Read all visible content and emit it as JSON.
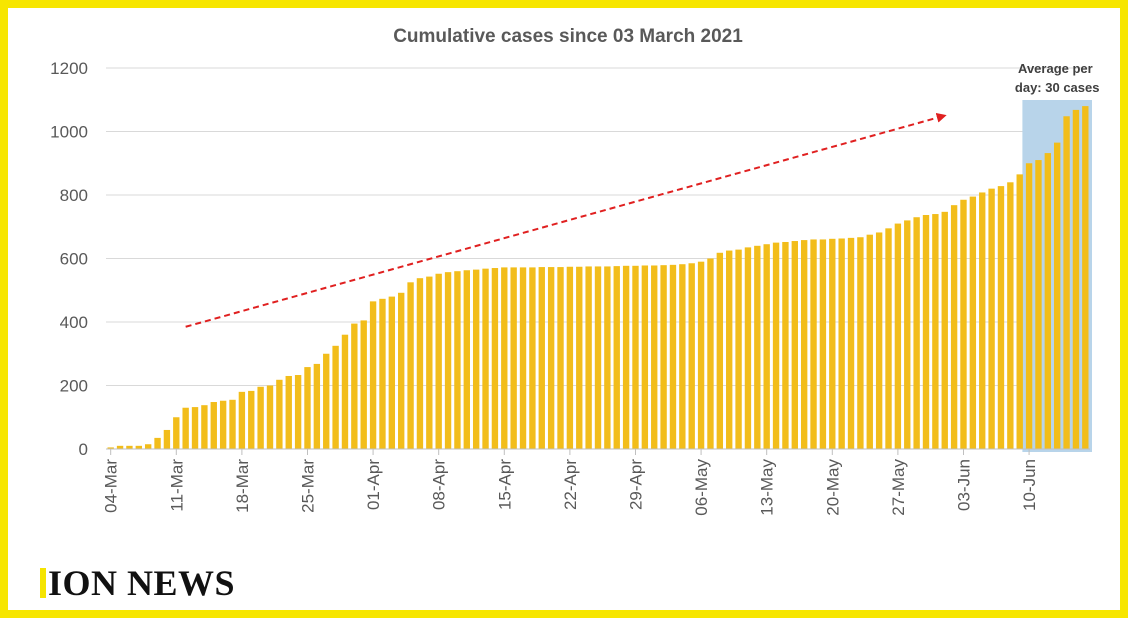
{
  "brand": {
    "name": "ION NEWS"
  },
  "colors": {
    "bar": "#f2bd1a",
    "frame": "#f7e600",
    "highlight": "#b8d4ea",
    "arrow": "#e02020",
    "grid": "#d9d9d9",
    "axis_text": "#595959"
  },
  "chart_data": {
    "type": "bar",
    "title": "Cumulative cases since 03 March 2021",
    "xlabel": "",
    "ylabel": "",
    "ylim": [
      0,
      1200
    ],
    "yticks": [
      0,
      200,
      400,
      600,
      800,
      1000,
      1200
    ],
    "grid": true,
    "tick_labels": [
      "04-Mar",
      "11-Mar",
      "18-Mar",
      "25-Mar",
      "01-Apr",
      "08-Apr",
      "15-Apr",
      "22-Apr",
      "29-Apr",
      "06-May",
      "13-May",
      "20-May",
      "27-May",
      "03-Jun",
      "10-Jun"
    ],
    "categories": [
      "04-Mar",
      "05-Mar",
      "06-Mar",
      "07-Mar",
      "08-Mar",
      "09-Mar",
      "10-Mar",
      "11-Mar",
      "12-Mar",
      "13-Mar",
      "14-Mar",
      "15-Mar",
      "16-Mar",
      "17-Mar",
      "18-Mar",
      "19-Mar",
      "20-Mar",
      "21-Mar",
      "22-Mar",
      "23-Mar",
      "24-Mar",
      "25-Mar",
      "26-Mar",
      "27-Mar",
      "28-Mar",
      "29-Mar",
      "30-Mar",
      "31-Mar",
      "01-Apr",
      "02-Apr",
      "03-Apr",
      "04-Apr",
      "05-Apr",
      "06-Apr",
      "07-Apr",
      "08-Apr",
      "09-Apr",
      "10-Apr",
      "11-Apr",
      "12-Apr",
      "13-Apr",
      "14-Apr",
      "15-Apr",
      "16-Apr",
      "17-Apr",
      "18-Apr",
      "19-Apr",
      "20-Apr",
      "21-Apr",
      "22-Apr",
      "23-Apr",
      "24-Apr",
      "25-Apr",
      "26-Apr",
      "27-Apr",
      "28-Apr",
      "29-Apr",
      "30-Apr",
      "01-May",
      "02-May",
      "03-May",
      "04-May",
      "05-May",
      "06-May",
      "07-May",
      "08-May",
      "09-May",
      "10-May",
      "11-May",
      "12-May",
      "13-May",
      "14-May",
      "15-May",
      "16-May",
      "17-May",
      "18-May",
      "19-May",
      "20-May",
      "21-May",
      "22-May",
      "23-May",
      "24-May",
      "25-May",
      "26-May",
      "27-May",
      "28-May",
      "29-May",
      "30-May",
      "31-May",
      "01-Jun",
      "02-Jun",
      "03-Jun",
      "04-Jun",
      "05-Jun",
      "06-Jun",
      "07-Jun",
      "08-Jun",
      "09-Jun",
      "10-Jun",
      "11-Jun",
      "12-Jun",
      "13-Jun",
      "14-Jun",
      "15-Jun",
      "16-Jun"
    ],
    "values": [
      5,
      10,
      10,
      10,
      15,
      35,
      60,
      100,
      130,
      132,
      138,
      148,
      152,
      155,
      180,
      183,
      196,
      200,
      218,
      230,
      233,
      258,
      268,
      300,
      325,
      360,
      395,
      405,
      465,
      473,
      480,
      492,
      525,
      538,
      543,
      552,
      557,
      560,
      563,
      565,
      568,
      570,
      572,
      572,
      572,
      572,
      573,
      573,
      573,
      574,
      574,
      575,
      575,
      575,
      576,
      577,
      577,
      578,
      578,
      579,
      580,
      582,
      585,
      590,
      600,
      618,
      625,
      628,
      635,
      640,
      645,
      650,
      652,
      655,
      658,
      660,
      660,
      662,
      663,
      665,
      667,
      675,
      682,
      695,
      710,
      720,
      730,
      737,
      740,
      747,
      768,
      785,
      795,
      808,
      820,
      828,
      840,
      865,
      900,
      910,
      932,
      965,
      1048,
      1068,
      1080
    ],
    "annotations": [
      {
        "text_lines": [
          "Average per",
          "day: 30 cases"
        ],
        "highlight_from": "10-Jun",
        "highlight_to": "16-Jun"
      }
    ],
    "trend_arrow": {
      "from": {
        "x": "12-Mar",
        "y": 385
      },
      "to": {
        "x": "01-Jun",
        "y": 1050
      }
    }
  }
}
